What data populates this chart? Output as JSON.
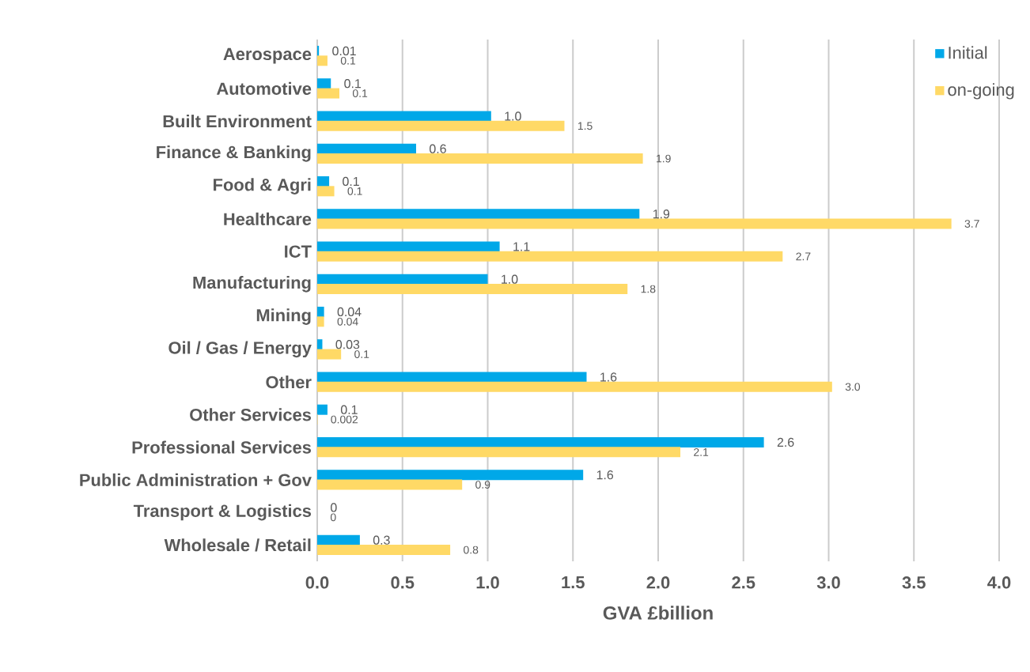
{
  "chart_data": {
    "type": "bar",
    "orientation": "horizontal",
    "xlabel": "GVA £billion",
    "categories": [
      "Aerospace",
      "Automotive",
      "Built Environment",
      "Finance & Banking",
      "Food & Agri",
      "Healthcare",
      "ICT",
      "Manufacturing",
      "Mining",
      "Oil / Gas / Energy",
      "Other",
      "Other Services",
      "Professional Services",
      "Public Administration + Gov",
      "Transport & Logistics",
      "Wholesale / Retail"
    ],
    "series": [
      {
        "name": "Initial",
        "color": "#00a8e8",
        "values": [
          0.01,
          0.08,
          1.02,
          0.58,
          0.07,
          1.89,
          1.07,
          1.0,
          0.04,
          0.03,
          1.58,
          0.06,
          2.62,
          1.56,
          0,
          0.25
        ],
        "value_labels": [
          "0.01",
          "0.1",
          "1.0",
          "0.6",
          "0.1",
          "1.9",
          "1.1",
          "1.0",
          "0.04",
          "0.03",
          "1.6",
          "0.1",
          "2.6",
          "1.6",
          "0",
          "0.3"
        ]
      },
      {
        "name": "on-going",
        "color": "#ffd966",
        "values": [
          0.06,
          0.13,
          1.45,
          1.91,
          0.1,
          3.72,
          2.73,
          1.82,
          0.04,
          0.14,
          3.02,
          0.002,
          2.13,
          0.85,
          0,
          0.78
        ],
        "value_labels": [
          "0.1",
          "0.1",
          "1.5",
          "1.9",
          "0.1",
          "3.7",
          "2.7",
          "1.8",
          "0.04",
          "0.1",
          "3.0",
          "0.002",
          "2.1",
          "0.9",
          "0",
          "0.8"
        ]
      }
    ],
    "xlim": [
      0,
      4.0
    ],
    "xticks": [
      {
        "value": 0,
        "label": "0.0"
      },
      {
        "value": 0.5,
        "label": "0.5"
      },
      {
        "value": 1.0,
        "label": "1.0"
      },
      {
        "value": 1.5,
        "label": "1.5"
      },
      {
        "value": 2.0,
        "label": "2.0"
      },
      {
        "value": 2.5,
        "label": "2.5"
      },
      {
        "value": 3.0,
        "label": "3.0"
      },
      {
        "value": 3.5,
        "label": "3.5"
      },
      {
        "value": 4.0,
        "label": "4.0"
      }
    ],
    "grid": "x",
    "legend": "top right"
  }
}
